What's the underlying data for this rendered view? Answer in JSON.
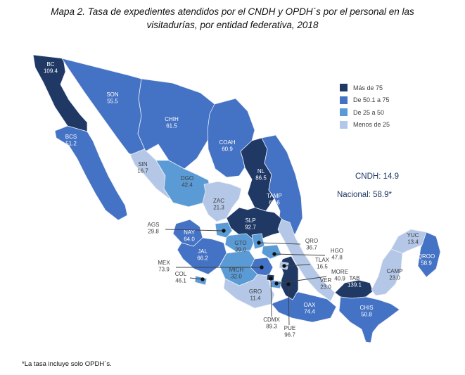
{
  "title": {
    "line1": "Mapa 2. Tasa de expedientes atendidos por el CNDH y OPDH´s por el personal en las",
    "line2": "visitadurías, por entidad federativa, 2018"
  },
  "legend": {
    "items": [
      {
        "key": "mas75",
        "label": "Más de 75",
        "color": "#1F3864"
      },
      {
        "key": "de50a75",
        "label": "De 50.1 a 75",
        "color": "#4472C4"
      },
      {
        "key": "de25a50",
        "label": "De 25 a 50",
        "color": "#5B9BD5"
      },
      {
        "key": "menos25",
        "label": "Menos de 25",
        "color": "#B4C7E7"
      }
    ]
  },
  "annotations": {
    "cndh": "CNDH: 14.9",
    "nacional": "Nacional: 58.9*",
    "color": "#1F3864"
  },
  "footnote": "*La tasa incluye solo OPDH´s.",
  "chart_data": {
    "type": "choropleth_map",
    "region": "México, entidades federativas",
    "title": "Mapa 2. Tasa de expedientes atendidos por el CNDH y OPDH´s por el personal en las visitadurías, por entidad federativa, 2018",
    "legend_position": "right",
    "bins": [
      {
        "key": "mas75",
        "label": "Más de 75",
        "color": "#1F3864",
        "min": 75.1,
        "max": null
      },
      {
        "key": "de50a75",
        "label": "De 50.1 a 75",
        "color": "#4472C4",
        "min": 50.1,
        "max": 75
      },
      {
        "key": "de25a50",
        "label": "De 25 a 50",
        "color": "#5B9BD5",
        "min": 25,
        "max": 50
      },
      {
        "key": "menos25",
        "label": "Menos de 25",
        "color": "#B4C7E7",
        "min": null,
        "max": 25
      }
    ],
    "reference_rates": {
      "cndh": 14.9,
      "nacional": 58.9
    },
    "footnote": "*La tasa incluye solo OPDH´s.",
    "states": [
      {
        "id": "BC",
        "name": "BC",
        "value": 109.4,
        "display": "109.4",
        "category": "mas75",
        "text": "light"
      },
      {
        "id": "BCS",
        "name": "BCS",
        "value": 51.2,
        "display": "51.2",
        "category": "de50a75",
        "text": "light"
      },
      {
        "id": "SON",
        "name": "SON",
        "value": 55.5,
        "display": "55.5",
        "category": "de50a75",
        "text": "light"
      },
      {
        "id": "CHIH",
        "name": "CHIH",
        "value": 61.5,
        "display": "61.5",
        "category": "de50a75",
        "text": "light"
      },
      {
        "id": "COAH",
        "name": "COAH",
        "value": 60.9,
        "display": "60.9",
        "category": "de50a75",
        "text": "light"
      },
      {
        "id": "NL",
        "name": "NL",
        "value": 86.5,
        "display": "86.5",
        "category": "mas75",
        "text": "light"
      },
      {
        "id": "TAMP",
        "name": "TAMP",
        "value": 68.6,
        "display": "68.6",
        "category": "de50a75",
        "text": "light"
      },
      {
        "id": "SIN",
        "name": "SIN",
        "value": 16.7,
        "display": "16.7",
        "category": "menos25",
        "text": "dark"
      },
      {
        "id": "DGO",
        "name": "DGO",
        "value": 42.4,
        "display": "42.4",
        "category": "de25a50",
        "text": "dark"
      },
      {
        "id": "ZAC",
        "name": "ZAC",
        "value": 21.3,
        "display": "21.3",
        "category": "menos25",
        "text": "dark"
      },
      {
        "id": "SLP",
        "name": "SLP",
        "value": 92.7,
        "display": "92.7",
        "category": "mas75",
        "text": "light"
      },
      {
        "id": "NAY",
        "name": "NAY",
        "value": 64.0,
        "display": "64.0",
        "category": "de50a75",
        "text": "light"
      },
      {
        "id": "JAL",
        "name": "JAL",
        "value": 66.2,
        "display": "66.2",
        "category": "de50a75",
        "text": "light"
      },
      {
        "id": "GTO",
        "name": "GTO",
        "value": 29.0,
        "display": "29.0",
        "category": "de25a50",
        "text": "dark"
      },
      {
        "id": "MICH",
        "name": "MICH",
        "value": 32.0,
        "display": "32.0",
        "category": "de25a50",
        "text": "dark"
      },
      {
        "id": "VER",
        "name": "VER",
        "value": 23.0,
        "display": "23.0",
        "category": "menos25",
        "text": "dark"
      },
      {
        "id": "GRO",
        "name": "GRO",
        "value": 11.4,
        "display": "11.4",
        "category": "menos25",
        "text": "dark"
      },
      {
        "id": "OAX",
        "name": "OAX",
        "value": 74.4,
        "display": "74.4",
        "category": "de50a75",
        "text": "light"
      },
      {
        "id": "PUE",
        "name": "PUE",
        "value": 96.7,
        "display": "96.7",
        "category": "mas75",
        "text": "dark"
      },
      {
        "id": "MEX",
        "name": "MEX",
        "value": 73.9,
        "display": "73.9",
        "category": "de50a75",
        "text": "dark"
      },
      {
        "id": "QRO",
        "name": "QRO",
        "value": 36.7,
        "display": "36.7",
        "category": "de25a50",
        "text": "dark"
      },
      {
        "id": "HGO",
        "name": "HGO",
        "value": 47.8,
        "display": "47.8",
        "category": "de25a50",
        "text": "dark"
      },
      {
        "id": "TLAX",
        "name": "TLAX",
        "value": 16.5,
        "display": "16.5",
        "category": "menos25",
        "text": "dark"
      },
      {
        "id": "MORE",
        "name": "MORE",
        "value": 40.9,
        "display": "40.9",
        "category": "de25a50",
        "text": "dark"
      },
      {
        "id": "CDMX",
        "name": "CDMX",
        "value": 89.3,
        "display": "89.3",
        "category": "mas75",
        "text": "dark"
      },
      {
        "id": "AGS",
        "name": "AGS",
        "value": 29.8,
        "display": "29.8",
        "category": "de25a50",
        "text": "dark"
      },
      {
        "id": "COL",
        "name": "COL",
        "value": 46.1,
        "display": "46.1",
        "category": "de25a50",
        "text": "dark"
      },
      {
        "id": "TAB",
        "name": "TAB",
        "value": 139.1,
        "display": "139.1",
        "category": "mas75",
        "text": "mixed"
      },
      {
        "id": "CHIS",
        "name": "CHIS",
        "value": 50.8,
        "display": "50.8",
        "category": "de50a75",
        "text": "light"
      },
      {
        "id": "CAMP",
        "name": "CAMP",
        "value": 23.0,
        "display": "23.0",
        "category": "menos25",
        "text": "dark"
      },
      {
        "id": "YUC",
        "name": "YUC",
        "value": 13.4,
        "display": "13.4",
        "category": "menos25",
        "text": "dark"
      },
      {
        "id": "QROO",
        "name": "QROO",
        "value": 58.9,
        "display": "58.9",
        "category": "de50a75",
        "text": "light"
      }
    ]
  }
}
